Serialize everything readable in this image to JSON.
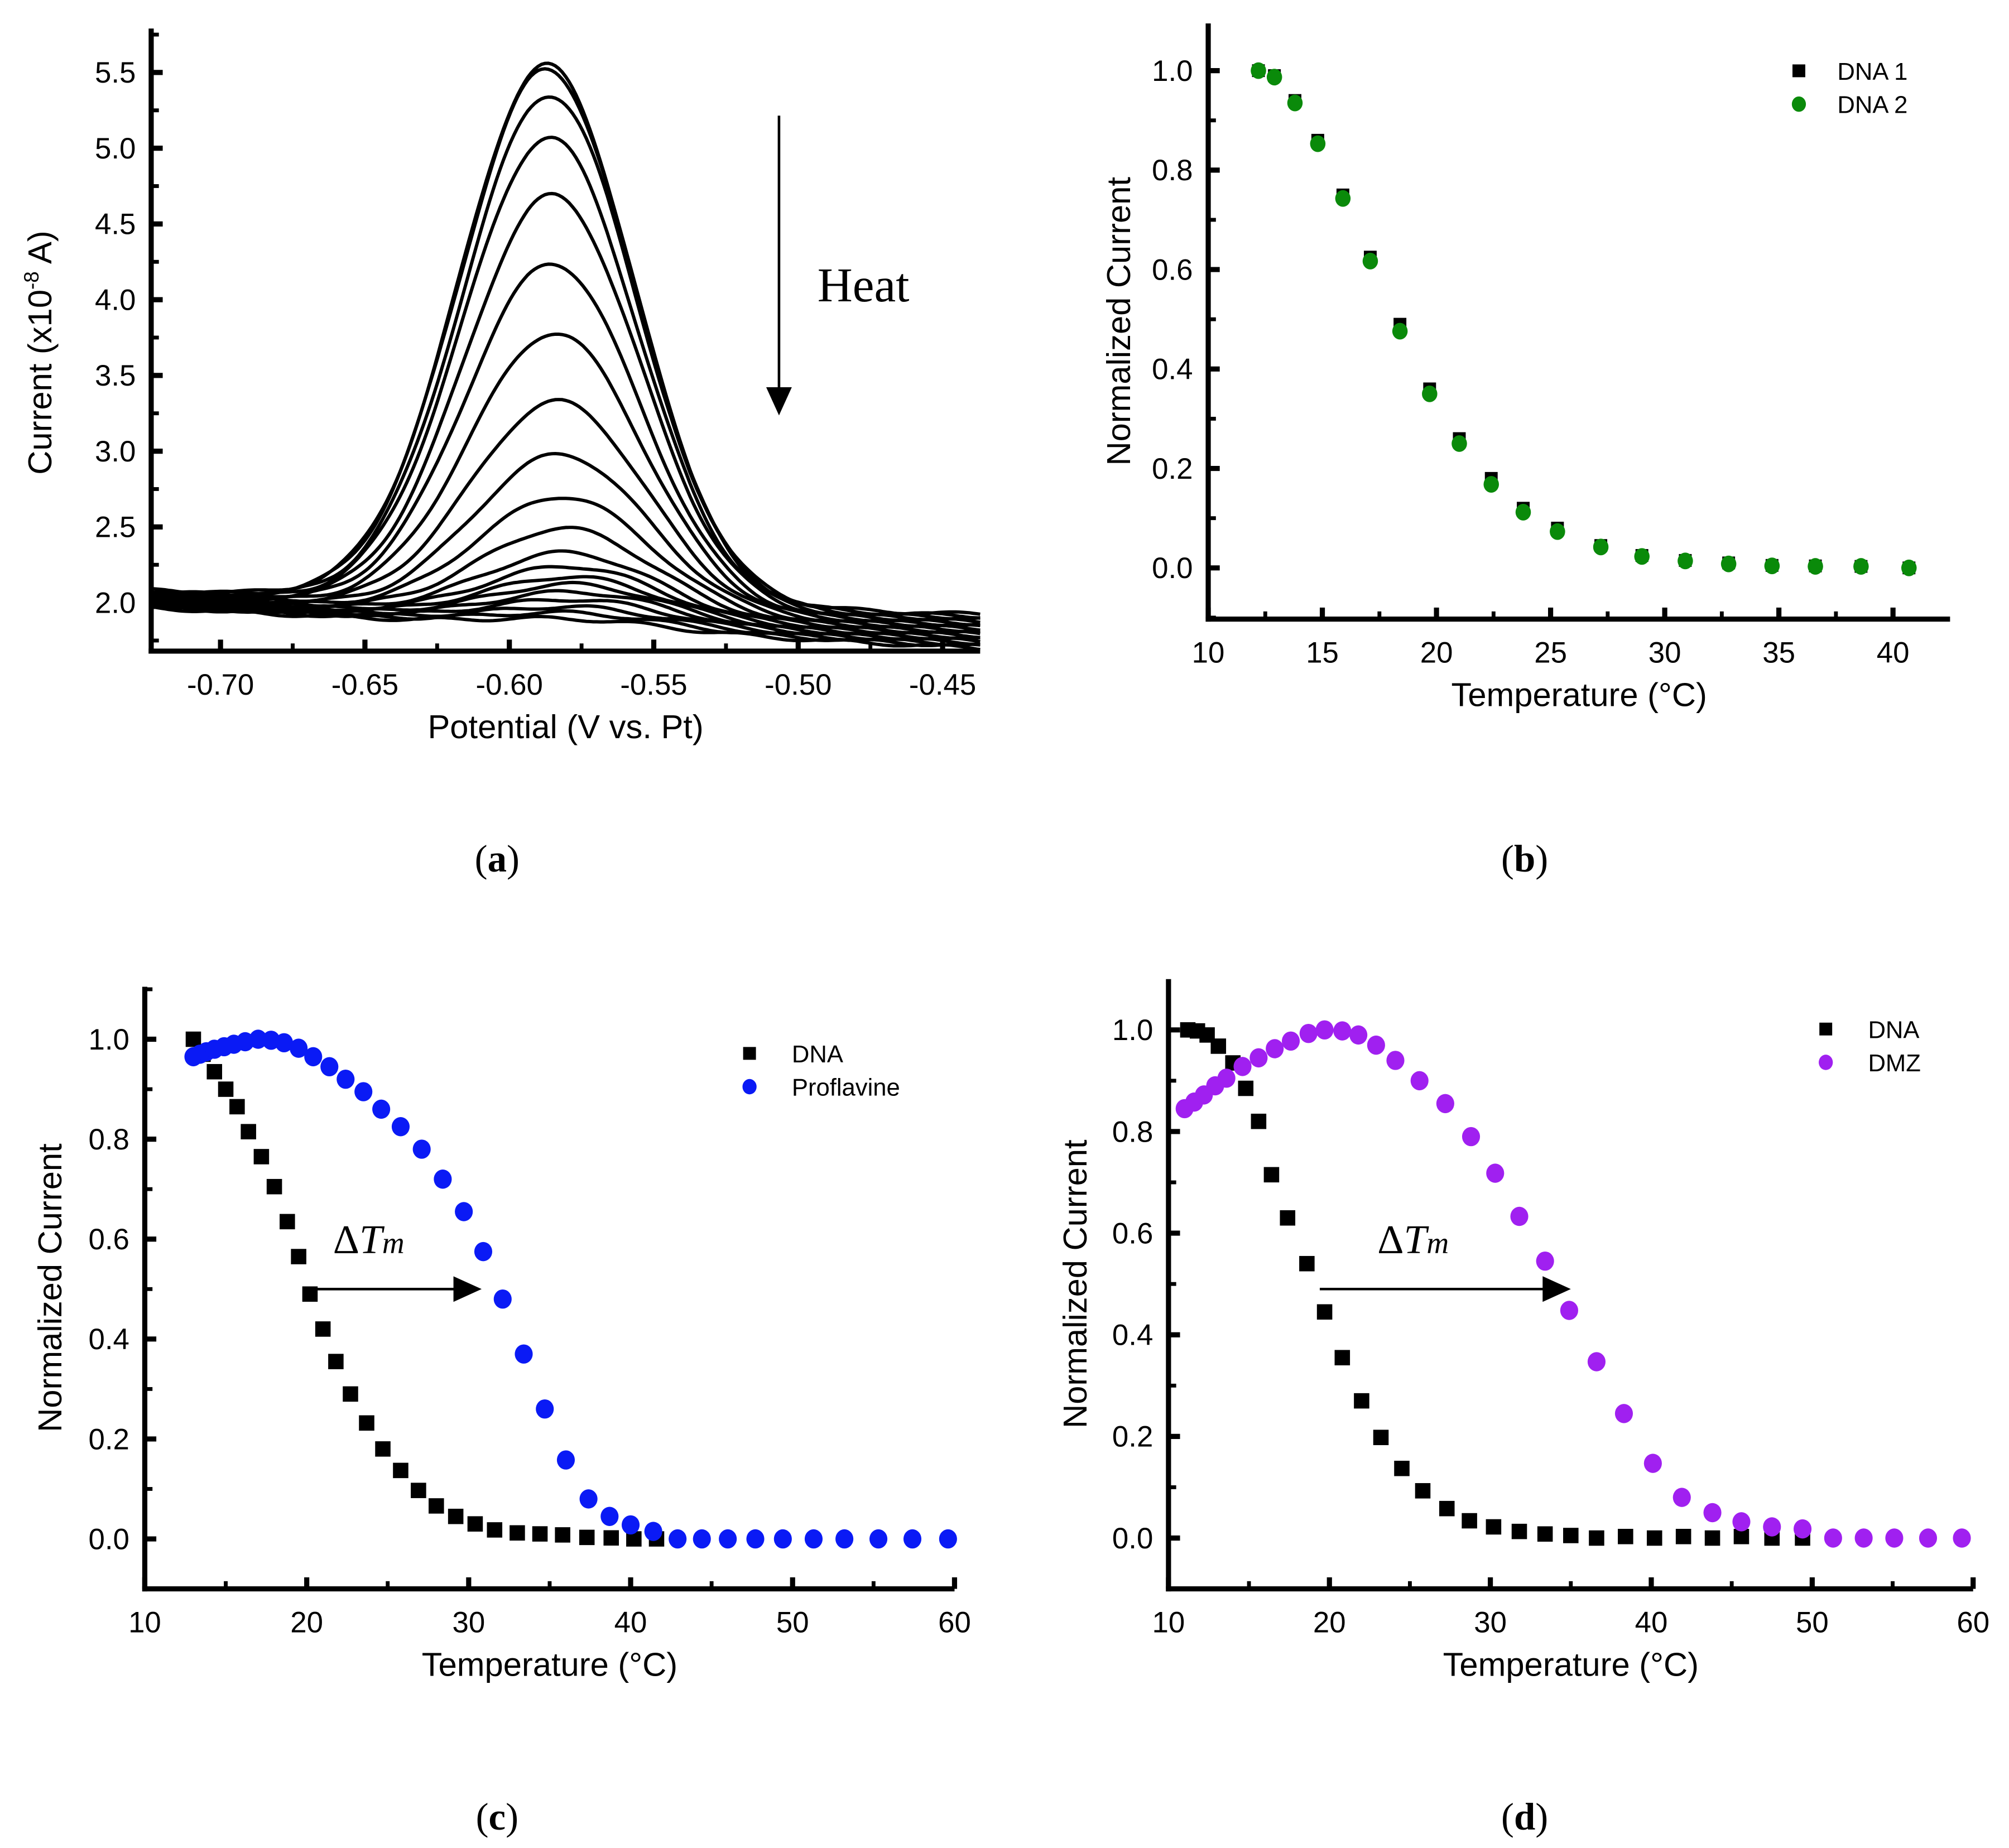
{
  "colors": {
    "black": "#000000",
    "green": "#0a8a0a",
    "blue": "#0a1af5",
    "purple": "#a020f0"
  },
  "chart_data": [
    {
      "panel": "(a)",
      "panel_letter": "a",
      "type": "line",
      "xlabel": "Potential (V vs. Pt)",
      "ylabel_main": "Current (x10",
      "ylabel_sup": "-8",
      "ylabel_end": " A)",
      "xlim": [
        -0.724,
        -0.437
      ],
      "ylim": [
        1.68,
        5.79
      ],
      "xticks": [
        "-0.70",
        "-0.65",
        "-0.60",
        "-0.55",
        "-0.50",
        "-0.45"
      ],
      "xtick_values": [
        -0.7,
        -0.65,
        -0.6,
        -0.55,
        -0.5,
        -0.45
      ],
      "yticks": [
        "2.0",
        "2.5",
        "3.0",
        "3.5",
        "4.0",
        "4.5",
        "5.0",
        "5.5"
      ],
      "ytick_values": [
        2.0,
        2.5,
        3.0,
        3.5,
        4.0,
        4.5,
        5.0,
        5.5
      ],
      "annotation": "Heat",
      "series_peak_heights": [
        5.55,
        5.52,
        5.35,
        5.07,
        4.69,
        4.24,
        3.78,
        3.33,
        2.98,
        2.7,
        2.49,
        2.33,
        2.24,
        2.17,
        2.12,
        2.07,
        2.02,
        1.97,
        1.93,
        1.89
      ],
      "series_peak_potentials": [
        -0.587,
        -0.587,
        -0.586,
        -0.586,
        -0.585,
        -0.585,
        -0.584,
        -0.583,
        -0.582,
        -0.581,
        -0.58,
        -0.579,
        -0.578,
        -0.577,
        -0.576,
        -0.575,
        -0.575,
        -0.575,
        -0.575,
        -0.575
      ]
    },
    {
      "panel": "(b)",
      "panel_letter": "b",
      "type": "scatter",
      "xlabel": "Temperature (°C)",
      "ylabel": "Normalized Current",
      "xlim": [
        10,
        42.5
      ],
      "ylim": [
        -0.103,
        1.095
      ],
      "xticks": [
        "10",
        "15",
        "20",
        "25",
        "30",
        "35",
        "40"
      ],
      "xtick_values": [
        10,
        15,
        20,
        25,
        30,
        35,
        40
      ],
      "yticks": [
        "0.0",
        "0.2",
        "0.4",
        "0.6",
        "0.8",
        "1.0"
      ],
      "ytick_values": [
        0,
        0.2,
        0.4,
        0.6,
        0.8,
        1.0
      ],
      "series": [
        {
          "name": "DNA 1",
          "marker": "square",
          "color": "#000000",
          "x": [
            12.2,
            12.9,
            13.8,
            14.8,
            15.9,
            17.1,
            18.4,
            19.7,
            21.0,
            22.4,
            23.8,
            25.3,
            27.2,
            29.0,
            30.9,
            32.8,
            34.7,
            36.6,
            38.6,
            40.7
          ],
          "y": [
            1.0,
            0.99,
            0.94,
            0.86,
            0.75,
            0.625,
            0.49,
            0.36,
            0.26,
            0.18,
            0.12,
            0.08,
            0.045,
            0.025,
            0.015,
            0.01,
            0.005,
            0.004,
            0.003,
            0.0
          ]
        },
        {
          "name": "DNA 2",
          "marker": "circle",
          "color": "#0a8a0a",
          "x": [
            12.2,
            12.9,
            13.8,
            14.8,
            15.9,
            17.1,
            18.4,
            19.7,
            21.0,
            22.4,
            23.8,
            25.3,
            27.2,
            29.0,
            30.9,
            32.8,
            34.7,
            36.6,
            38.6,
            40.7
          ],
          "y": [
            1.0,
            0.987,
            0.935,
            0.853,
            0.743,
            0.617,
            0.476,
            0.35,
            0.25,
            0.168,
            0.112,
            0.073,
            0.042,
            0.023,
            0.014,
            0.008,
            0.004,
            0.003,
            0.003,
            0.0
          ]
        }
      ]
    },
    {
      "panel": "(c)",
      "panel_letter": "c",
      "type": "scatter",
      "xlabel": "Temperature (°C)",
      "ylabel": "Normalized Current",
      "xlim": [
        10,
        60
      ],
      "ylim": [
        -0.1,
        1.105
      ],
      "xticks": [
        "10",
        "20",
        "30",
        "40",
        "50",
        "60"
      ],
      "xtick_values": [
        10,
        20,
        30,
        40,
        50,
        60
      ],
      "yticks": [
        "0.0",
        "0.2",
        "0.4",
        "0.6",
        "0.8",
        "1.0"
      ],
      "ytick_values": [
        0,
        0.2,
        0.4,
        0.6,
        0.8,
        1.0
      ],
      "annotation": {
        "delta": "Δ",
        "T": "T",
        "sub": "m",
        "from_x": 20.2,
        "to_x": 30.8,
        "y": 0.5
      },
      "series": [
        {
          "name": "DNA",
          "marker": "square",
          "color": "#000000",
          "x": [
            13.0,
            13.6,
            14.3,
            15.0,
            15.7,
            16.4,
            17.2,
            18.0,
            18.8,
            19.5,
            20.2,
            21.0,
            21.8,
            22.7,
            23.7,
            24.7,
            25.8,
            26.9,
            28.0,
            29.2,
            30.4,
            31.6,
            33.0,
            34.4,
            35.8,
            37.3,
            38.8,
            40.2,
            41.6
          ],
          "y": [
            1.0,
            0.97,
            0.935,
            0.9,
            0.865,
            0.815,
            0.765,
            0.705,
            0.635,
            0.565,
            0.49,
            0.42,
            0.355,
            0.29,
            0.232,
            0.18,
            0.137,
            0.097,
            0.066,
            0.045,
            0.03,
            0.018,
            0.012,
            0.01,
            0.008,
            0.003,
            0.002,
            0.0,
            0.0
          ]
        },
        {
          "name": "Proflavine",
          "marker": "circle",
          "color": "#0a1af5",
          "x": [
            13.0,
            13.4,
            13.8,
            14.3,
            14.9,
            15.5,
            16.2,
            17.0,
            17.8,
            18.6,
            19.5,
            20.4,
            21.4,
            22.4,
            23.5,
            24.6,
            25.8,
            27.1,
            28.4,
            29.7,
            30.9,
            32.1,
            33.4,
            34.7,
            36.0,
            37.4,
            38.7,
            40.0,
            41.4,
            42.9,
            44.4,
            46.0,
            47.7,
            49.4,
            51.3,
            53.2,
            55.3,
            57.4,
            59.6
          ],
          "y": [
            0.965,
            0.97,
            0.975,
            0.98,
            0.985,
            0.99,
            0.995,
            1.0,
            0.998,
            0.993,
            0.982,
            0.965,
            0.945,
            0.92,
            0.895,
            0.86,
            0.825,
            0.78,
            0.72,
            0.655,
            0.575,
            0.48,
            0.37,
            0.26,
            0.158,
            0.08,
            0.045,
            0.028,
            0.015,
            0.0,
            0.0,
            0.0,
            0.0,
            0.0,
            0.0,
            0.0,
            0.0,
            0.0,
            0.0
          ]
        }
      ]
    },
    {
      "panel": "(d)",
      "panel_letter": "d",
      "type": "scatter",
      "xlabel": "Temperature (°C)",
      "ylabel": "Normalized Current",
      "xlim": [
        10,
        60
      ],
      "ylim": [
        -0.1,
        1.1
      ],
      "xticks": [
        "10",
        "20",
        "30",
        "40",
        "50",
        "60"
      ],
      "xtick_values": [
        10,
        20,
        30,
        40,
        50,
        60
      ],
      "yticks": [
        "0.0",
        "0.2",
        "0.4",
        "0.6",
        "0.8",
        "1.0"
      ],
      "ytick_values": [
        0,
        0.2,
        0.4,
        0.6,
        0.8,
        1.0
      ],
      "annotation": {
        "delta": "Δ",
        "T": "T",
        "sub": "m",
        "from_x": 19.4,
        "to_x": 35.0,
        "y": 0.49
      },
      "series": [
        {
          "name": "DNA",
          "marker": "square",
          "color": "#000000",
          "x": [
            11.2,
            11.8,
            12.4,
            13.1,
            14.0,
            14.8,
            15.6,
            16.4,
            17.4,
            18.6,
            19.7,
            20.8,
            22.0,
            23.2,
            24.5,
            25.8,
            27.3,
            28.7,
            30.2,
            31.8,
            33.4,
            35.0,
            36.6,
            38.4,
            40.2,
            42.0,
            43.8,
            45.6,
            47.5,
            49.4
          ],
          "y": [
            1.0,
            0.998,
            0.99,
            0.968,
            0.935,
            0.885,
            0.82,
            0.715,
            0.63,
            0.54,
            0.445,
            0.355,
            0.27,
            0.198,
            0.137,
            0.093,
            0.058,
            0.034,
            0.022,
            0.013,
            0.008,
            0.005,
            0.0,
            0.003,
            0.0,
            0.003,
            0.0,
            0.003,
            0.0,
            0.0
          ]
        },
        {
          "name": "DMZ",
          "marker": "circle",
          "color": "#a020f0",
          "x": [
            11.0,
            11.6,
            12.2,
            12.9,
            13.6,
            14.6,
            15.6,
            16.6,
            17.6,
            18.7,
            19.7,
            20.8,
            21.8,
            22.9,
            24.1,
            25.6,
            27.2,
            28.8,
            30.3,
            31.8,
            33.4,
            34.9,
            36.6,
            38.3,
            40.1,
            41.9,
            43.8,
            45.6,
            47.5,
            49.4,
            51.3,
            53.2,
            55.1,
            57.2,
            59.3
          ],
          "y": [
            0.845,
            0.858,
            0.872,
            0.89,
            0.905,
            0.928,
            0.945,
            0.963,
            0.978,
            0.993,
            1.0,
            0.998,
            0.99,
            0.97,
            0.94,
            0.9,
            0.855,
            0.79,
            0.718,
            0.633,
            0.545,
            0.448,
            0.347,
            0.245,
            0.147,
            0.08,
            0.05,
            0.032,
            0.022,
            0.018,
            0.0,
            0.0,
            0.0,
            0.0,
            0.0
          ]
        }
      ]
    }
  ]
}
